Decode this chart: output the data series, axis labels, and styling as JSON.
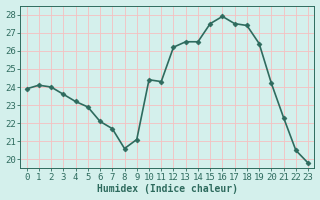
{
  "x": [
    0,
    1,
    2,
    3,
    4,
    5,
    6,
    7,
    8,
    9,
    10,
    11,
    12,
    13,
    14,
    15,
    16,
    17,
    18,
    19,
    20,
    21,
    22,
    23
  ],
  "y": [
    23.9,
    24.1,
    24.0,
    23.6,
    23.2,
    22.9,
    22.1,
    21.7,
    20.6,
    21.1,
    24.4,
    24.3,
    26.2,
    26.5,
    26.5,
    27.5,
    27.9,
    27.5,
    27.4,
    26.4,
    24.2,
    22.3,
    20.5,
    19.8
  ],
  "line_color": "#2e6b5e",
  "marker": "D",
  "marker_size": 2.5,
  "bg_color": "#d4f0ec",
  "plot_bg_color": "#d4f0ec",
  "grid_color": "#f5c0c0",
  "xlabel": "Humidex (Indice chaleur)",
  "ylim": [
    19.5,
    28.5
  ],
  "yticks": [
    20,
    21,
    22,
    23,
    24,
    25,
    26,
    27,
    28
  ],
  "xticks": [
    0,
    1,
    2,
    3,
    4,
    5,
    6,
    7,
    8,
    9,
    10,
    11,
    12,
    13,
    14,
    15,
    16,
    17,
    18,
    19,
    20,
    21,
    22,
    23
  ],
  "xlabel_fontsize": 7,
  "tick_fontsize": 6.5,
  "line_width": 1.2
}
